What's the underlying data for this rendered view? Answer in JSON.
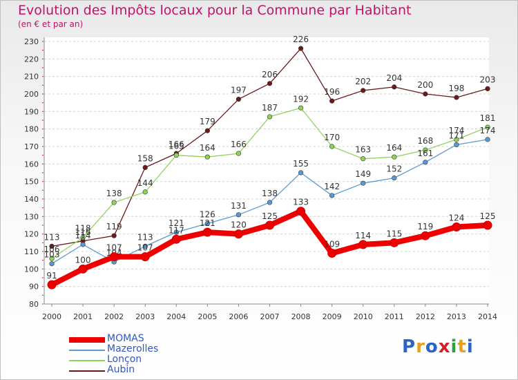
{
  "title": "Evolution des Impôts locaux pour la Commune par Habitant",
  "subtitle": "(en € et par an)",
  "logo": {
    "letters": [
      "P",
      "r",
      "o",
      "x",
      "i",
      "t",
      "i"
    ],
    "colors": [
      "#2a64c8",
      "#e8a020",
      "#2a64c8",
      "#d0202a",
      "#2aa040",
      "#e8a020",
      "#2a64c8"
    ]
  },
  "chart_data": {
    "type": "line",
    "x": [
      "2000",
      "2001",
      "2002",
      "2003",
      "2004",
      "2005",
      "2006",
      "2007",
      "2008",
      "2009",
      "2010",
      "2011",
      "2012",
      "2013",
      "2014"
    ],
    "ylim": [
      80,
      230
    ],
    "yticks": [
      80,
      90,
      100,
      110,
      120,
      130,
      140,
      150,
      160,
      170,
      180,
      190,
      200,
      210,
      220,
      230
    ],
    "grid": "horizontal",
    "legend_position": "bottom-left",
    "series": [
      {
        "name": "Aubin",
        "color": "#6a1a1a",
        "values": [
          113,
          116,
          119,
          158,
          166,
          179,
          197,
          206,
          226,
          196,
          202,
          204,
          200,
          198,
          203
        ]
      },
      {
        "name": "Lonçon",
        "color": "#8ed35a",
        "values": [
          106,
          118,
          138,
          144,
          165,
          164,
          166,
          187,
          192,
          170,
          163,
          164,
          168,
          174,
          181
        ]
      },
      {
        "name": "Mazerolles",
        "color": "#5a9ad4",
        "values": [
          103,
          114,
          104,
          113,
          121,
          126,
          131,
          138,
          155,
          142,
          149,
          152,
          161,
          171,
          174
        ]
      },
      {
        "name": "MOMAS",
        "color": "#ee0000",
        "values": [
          91,
          100,
          107,
          107,
          117,
          121,
          120,
          125,
          133,
          109,
          114,
          115,
          119,
          124,
          125
        ]
      }
    ]
  },
  "legend": [
    {
      "name": "MOMAS",
      "color": "#ee0000",
      "thick": true
    },
    {
      "name": "Mazerolles",
      "color": "#5a9ad4",
      "thick": false
    },
    {
      "name": "Lonçon",
      "color": "#8ed35a",
      "thick": false
    },
    {
      "name": "Aubin",
      "color": "#6a1a1a",
      "thick": false
    }
  ]
}
